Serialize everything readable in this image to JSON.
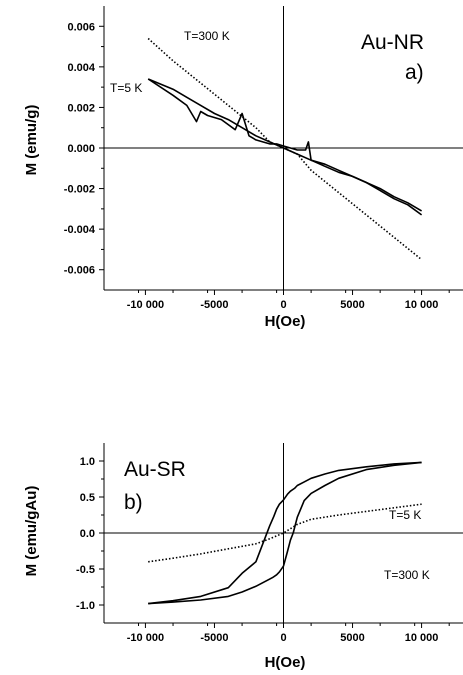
{
  "chart_data": [
    {
      "type": "line",
      "panel_label": "a)",
      "sample_label": "Au-NR",
      "xlabel": "H(Oe)",
      "ylabel": "M (emu/g)",
      "xlim": [
        -13000,
        13000
      ],
      "ylim": [
        -0.007,
        0.007
      ],
      "xticks": [
        -10000,
        -5000,
        0,
        5000,
        10000
      ],
      "xtick_labels": [
        "-10 000",
        "-5000",
        "0",
        "5000",
        "10 000"
      ],
      "yticks": [
        -0.006,
        -0.004,
        -0.002,
        0.0,
        0.002,
        0.004,
        0.006
      ],
      "ytick_labels": [
        "-0.006",
        "-0.004",
        "-0.002",
        "0.000",
        "0.002",
        "0.004",
        "0.006"
      ],
      "series": [
        {
          "name": "T=5 K",
          "style": "solid",
          "x": [
            -9800,
            -8000,
            -7000,
            -6300,
            -6000,
            -5500,
            -4500,
            -3500,
            -3000,
            -2500,
            -2000,
            -1000,
            -500,
            0,
            500,
            1000,
            1600,
            1800,
            2000,
            3000,
            4000,
            5000,
            6000,
            7000,
            8000,
            9000,
            10000
          ],
          "y": [
            0.0034,
            0.0026,
            0.0021,
            0.0013,
            0.0018,
            0.0016,
            0.0014,
            0.0009,
            0.0017,
            0.0006,
            0.0004,
            0.0002,
            0.0002,
            0.0001,
            0.0,
            -0.0001,
            -0.0001,
            0.0003,
            -0.0006,
            -0.0009,
            -0.0012,
            -0.0014,
            -0.0017,
            -0.0021,
            -0.0025,
            -0.0028,
            -0.0033
          ]
        },
        {
          "name": "T=5 K",
          "style": "solid",
          "x": [
            10000,
            9000,
            8000,
            7000,
            6000,
            5000,
            4000,
            3000,
            2000,
            1000,
            0,
            -1000,
            -2000,
            -3000,
            -4000,
            -5000,
            -6000,
            -7000,
            -8000,
            -9800
          ],
          "y": [
            -0.0031,
            -0.0027,
            -0.0024,
            -0.002,
            -0.0017,
            -0.0014,
            -0.0011,
            -0.0008,
            -0.0006,
            -0.0003,
            0.0,
            0.0003,
            0.0006,
            0.001,
            0.0014,
            0.0017,
            0.0021,
            0.0025,
            0.0029,
            0.0034
          ]
        },
        {
          "name": "T=300 K",
          "style": "dotted",
          "x": [
            -9800,
            -8000,
            -6000,
            -4000,
            -2000,
            -1000,
            0,
            1000,
            2000,
            4000,
            6000,
            8000,
            10000
          ],
          "y": [
            0.0054,
            0.0043,
            0.0032,
            0.0021,
            0.001,
            0.0003,
            0.0,
            -0.0003,
            -0.0011,
            -0.0022,
            -0.0033,
            -0.0044,
            -0.0055
          ]
        }
      ],
      "annotations": [
        "T=300 K",
        "T=5 K"
      ]
    },
    {
      "type": "line",
      "panel_label": "b)",
      "sample_label": "Au-SR",
      "xlabel": "H(Oe)",
      "ylabel": "M (emu/gAu)",
      "xlim": [
        -13000,
        13000
      ],
      "ylim": [
        -1.25,
        1.25
      ],
      "xticks": [
        -10000,
        -5000,
        0,
        5000,
        10000
      ],
      "xtick_labels": [
        "-10 000",
        "-5000",
        "0",
        "5000",
        "10 000"
      ],
      "yticks": [
        -1.0,
        -0.5,
        0.0,
        0.5,
        1.0
      ],
      "ytick_labels": [
        "-1.0",
        "-0.5",
        "0.0",
        "0.5",
        "1.0"
      ],
      "series": [
        {
          "name": "T=5 K",
          "style": "solid",
          "x": [
            10000,
            8000,
            6000,
            4000,
            3000,
            2000,
            1500,
            1000,
            700,
            500,
            300,
            0,
            -300,
            -500,
            -800,
            -1000,
            -1500,
            -2000,
            -3000,
            -4000,
            -6000,
            -8000,
            -9800
          ],
          "y": [
            0.98,
            0.94,
            0.88,
            0.76,
            0.66,
            0.55,
            0.45,
            0.22,
            0.0,
            -0.1,
            -0.25,
            -0.46,
            -0.54,
            -0.58,
            -0.62,
            -0.64,
            -0.69,
            -0.74,
            -0.82,
            -0.88,
            -0.93,
            -0.96,
            -0.98
          ]
        },
        {
          "name": "T=5 K",
          "style": "solid",
          "x": [
            -9800,
            -8000,
            -6000,
            -4000,
            -3000,
            -2000,
            -1500,
            -1000,
            -700,
            -500,
            -300,
            0,
            300,
            500,
            800,
            1000,
            1500,
            2000,
            3000,
            4000,
            6000,
            8000,
            10000
          ],
          "y": [
            -0.98,
            -0.94,
            -0.88,
            -0.76,
            -0.56,
            -0.4,
            -0.15,
            0.1,
            0.23,
            0.33,
            0.4,
            0.46,
            0.54,
            0.58,
            0.62,
            0.66,
            0.71,
            0.76,
            0.82,
            0.87,
            0.92,
            0.96,
            0.98
          ]
        },
        {
          "name": "T=300 K",
          "style": "dotted",
          "x": [
            -9800,
            -8000,
            -6000,
            -4000,
            -2000,
            -1000,
            0,
            1000,
            2000,
            4000,
            6000,
            8000,
            10000
          ],
          "y": [
            -0.4,
            -0.35,
            -0.29,
            -0.22,
            -0.15,
            -0.08,
            0.0,
            0.12,
            0.19,
            0.25,
            0.3,
            0.35,
            0.4
          ]
        }
      ],
      "annotations": [
        "T=5 K",
        "T=300 K"
      ]
    }
  ]
}
